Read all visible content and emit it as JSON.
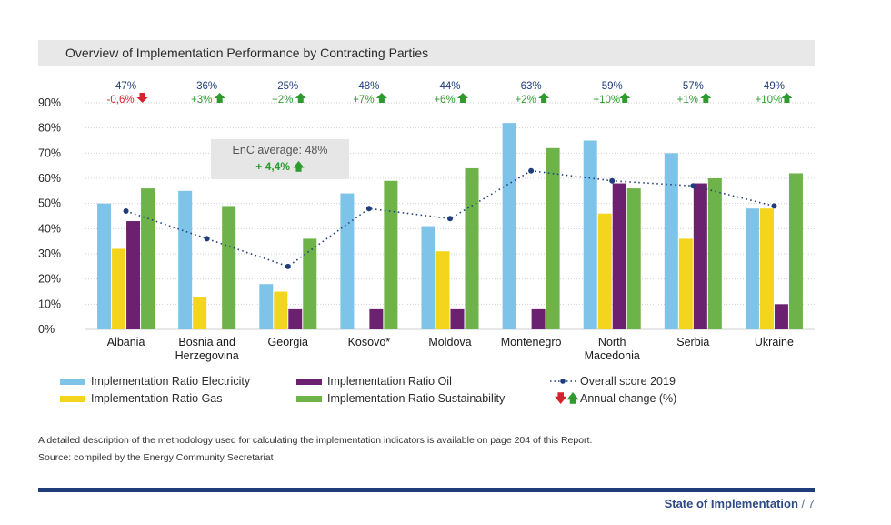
{
  "title": "Overview of Implementation Performance by Contracting Parties",
  "chart_data": {
    "type": "bar",
    "ylim": [
      0,
      90
    ],
    "y_ticks": [
      "0%",
      "10%",
      "20%",
      "30%",
      "40%",
      "50%",
      "60%",
      "70%",
      "80%",
      "90%"
    ],
    "y_tick_values": [
      0,
      10,
      20,
      30,
      40,
      50,
      60,
      70,
      80,
      90
    ],
    "categories": [
      "Albania",
      "Bosnia and Herzegovina",
      "Georgia",
      "Kosovo*",
      "Moldova",
      "Montenegro",
      "North Macedonia",
      "Serbia",
      "Ukraine"
    ],
    "category_label_lines": [
      [
        "Albania"
      ],
      [
        "Bosnia and",
        "Herzegovina"
      ],
      [
        "Georgia"
      ],
      [
        "Kosovo*"
      ],
      [
        "Moldova"
      ],
      [
        "Montenegro"
      ],
      [
        "North",
        "Macedonia"
      ],
      [
        "Serbia"
      ],
      [
        "Ukraine"
      ]
    ],
    "series": [
      {
        "name": "Implementation Ratio Electricity",
        "color": "#7ec4e8",
        "values": [
          50,
          55,
          18,
          54,
          41,
          82,
          75,
          70,
          48
        ]
      },
      {
        "name": "Implementation Ratio Gas",
        "color": "#f4d51e",
        "values": [
          32,
          13,
          15,
          null,
          31,
          null,
          46,
          36,
          48
        ]
      },
      {
        "name": "Implementation Ratio Oil",
        "color": "#6c2070",
        "values": [
          43,
          null,
          8,
          8,
          8,
          8,
          58,
          58,
          10
        ]
      },
      {
        "name": "Implementation Ratio Sustainability",
        "color": "#6db34a",
        "values": [
          56,
          49,
          36,
          59,
          64,
          72,
          56,
          60,
          62
        ]
      }
    ],
    "overall_score": {
      "name": "Overall score 2019",
      "color": "#1f3d7a",
      "values": [
        47,
        36,
        25,
        48,
        44,
        63,
        59,
        57,
        49
      ]
    },
    "top_scores": [
      "47%",
      "36%",
      "25%",
      "48%",
      "44%",
      "63%",
      "59%",
      "57%",
      "49%"
    ],
    "annual_changes": [
      {
        "text": "-0,6%",
        "direction": "down"
      },
      {
        "text": "+3%",
        "direction": "up"
      },
      {
        "text": "+2%",
        "direction": "up"
      },
      {
        "text": "+7%",
        "direction": "up"
      },
      {
        "text": "+6%",
        "direction": "up"
      },
      {
        "text": "+2%",
        "direction": "up"
      },
      {
        "text": "+10%",
        "direction": "up"
      },
      {
        "text": "+1%",
        "direction": "up"
      },
      {
        "text": "+10%",
        "direction": "up"
      }
    ],
    "annotation": {
      "label": "EnC average: 48%",
      "change": "+ 4,4%"
    }
  },
  "colors": {
    "up": "#2f9a2f",
    "down": "#d4232e",
    "score_text": "#1f3d7a"
  },
  "legend": {
    "electricity": "Implementation Ratio Electricity",
    "gas": "Implementation Ratio Gas",
    "oil": "Implementation Ratio Oil",
    "sustainability": "Implementation Ratio Sustainability",
    "overall": "Overall score 2019",
    "annual": "Annual change (%)"
  },
  "notes": {
    "methodology": "A detailed description of the methodology used for calculating the implementation indicators is available on page 204 of this Report.",
    "source": "Source: compiled by the Energy Community Secretariat"
  },
  "footer": {
    "section": "State of Implementation",
    "page": " / 7"
  }
}
